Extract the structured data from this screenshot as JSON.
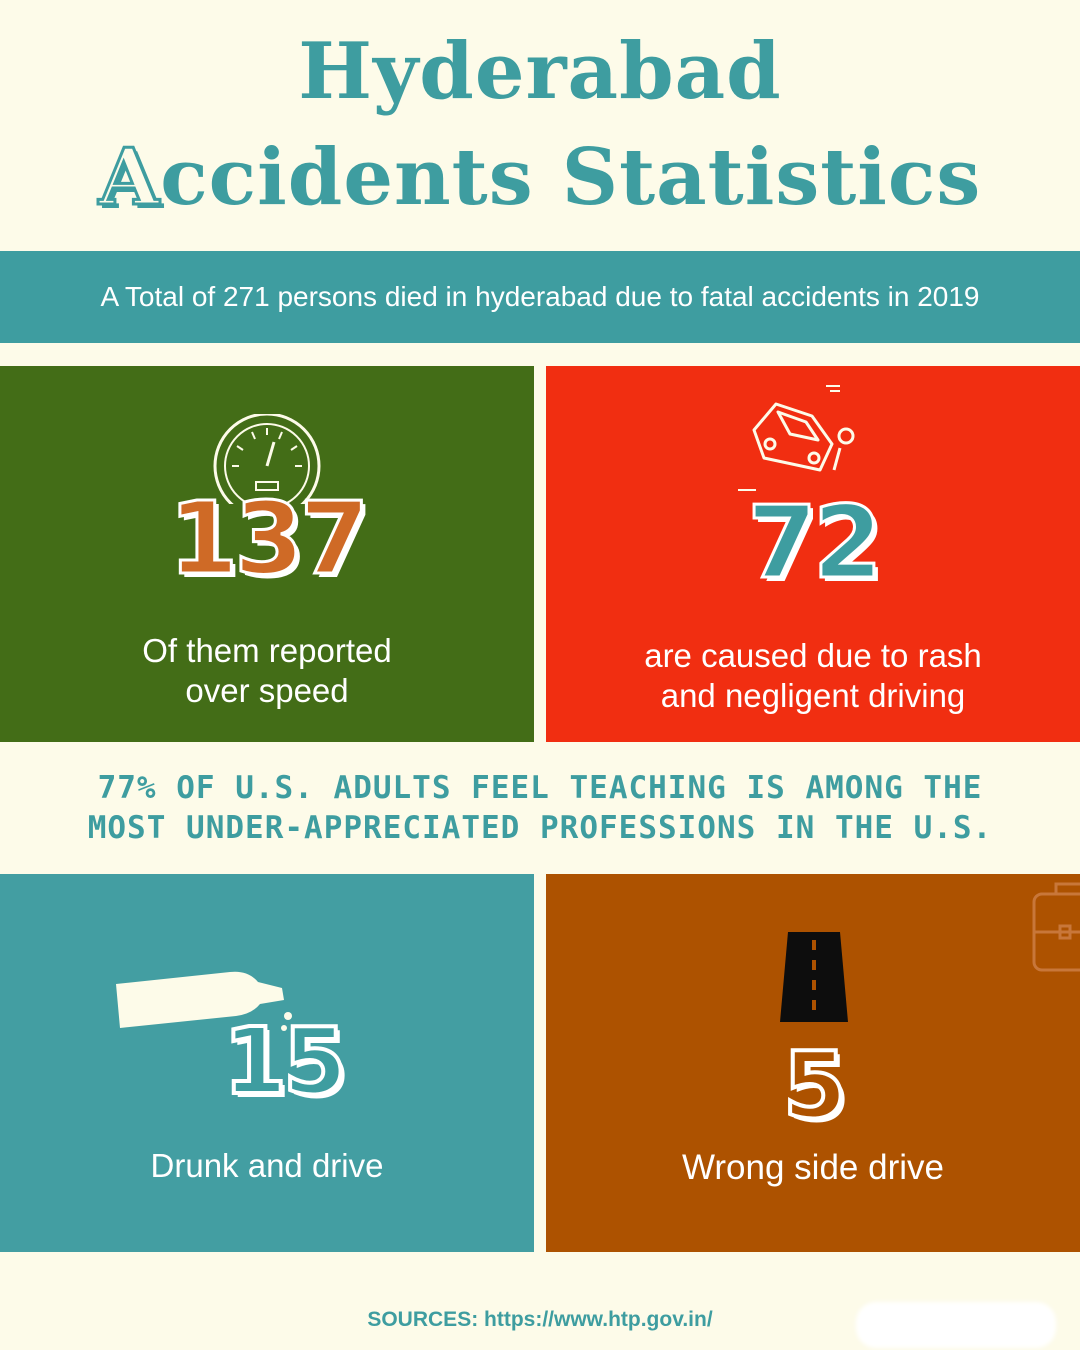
{
  "header": {
    "title_line1": "Hyderabad",
    "title_line2_first": "A",
    "title_line2_rest": "ccidents Statistics"
  },
  "banner": {
    "text": "A Total of 271 persons died in hyderabad due to fatal accidents in 2019"
  },
  "stats": [
    {
      "number": "137",
      "description_line1": "Of them reported",
      "description_line2": "over speed",
      "color": "#436d17",
      "icon": "speedometer-icon"
    },
    {
      "number": "72",
      "description_line1": "are caused due to rash",
      "description_line2": "and negligent driving",
      "color": "#f12e11",
      "icon": "crashed-car-icon"
    },
    {
      "number": "15",
      "description_line1": "Drunk and drive",
      "color": "#439ea2",
      "icon": "bottle-icon"
    },
    {
      "number": "5",
      "description_line1": "Wrong side drive",
      "color": "#ad5200",
      "icon": "road-icon"
    }
  ],
  "middle_text": {
    "line1": "77% of U.S. adults feel teaching is among the",
    "line2": "most under-appreciated professions in the U.S."
  },
  "footer": {
    "sources": "SOURCES: https://www.htp.gov.in/"
  },
  "colors": {
    "background": "#fdfbe9",
    "teal": "#3e9da0",
    "orange_number": "#cf6a26"
  }
}
